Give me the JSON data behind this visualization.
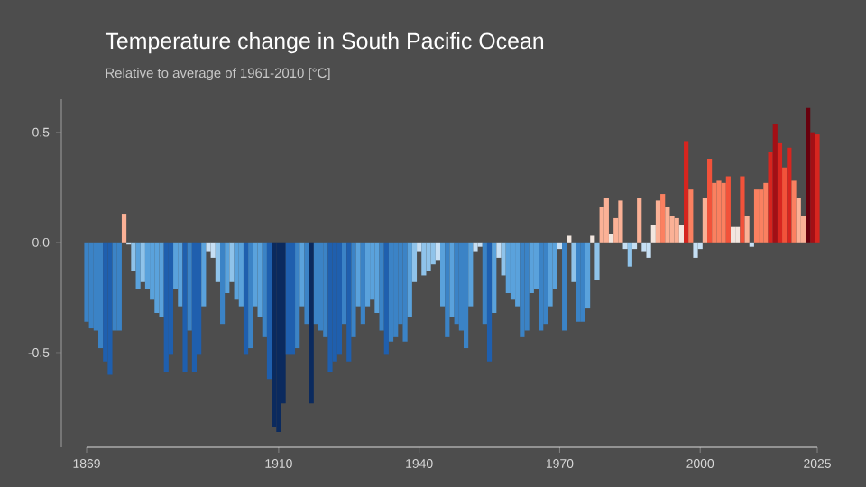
{
  "chart_data": {
    "type": "bar",
    "title": "Temperature change in South Pacific Ocean",
    "subtitle": "Relative to average of 1961-2010  [°C]",
    "x": [
      1869,
      1870,
      1871,
      1872,
      1873,
      1874,
      1875,
      1876,
      1877,
      1878,
      1879,
      1880,
      1881,
      1882,
      1883,
      1884,
      1885,
      1886,
      1887,
      1888,
      1889,
      1890,
      1891,
      1892,
      1893,
      1894,
      1895,
      1896,
      1897,
      1898,
      1899,
      1900,
      1901,
      1902,
      1903,
      1904,
      1905,
      1906,
      1907,
      1908,
      1909,
      1910,
      1911,
      1912,
      1913,
      1914,
      1915,
      1916,
      1917,
      1918,
      1919,
      1920,
      1921,
      1922,
      1923,
      1924,
      1925,
      1926,
      1927,
      1928,
      1929,
      1930,
      1931,
      1932,
      1933,
      1934,
      1935,
      1936,
      1937,
      1938,
      1939,
      1940,
      1941,
      1942,
      1943,
      1944,
      1945,
      1946,
      1947,
      1948,
      1949,
      1950,
      1951,
      1952,
      1953,
      1954,
      1955,
      1956,
      1957,
      1958,
      1959,
      1960,
      1961,
      1962,
      1963,
      1964,
      1965,
      1966,
      1967,
      1968,
      1969,
      1970,
      1971,
      1972,
      1973,
      1974,
      1975,
      1976,
      1977,
      1978,
      1979,
      1980,
      1981,
      1982,
      1983,
      1984,
      1985,
      1986,
      1987,
      1988,
      1989,
      1990,
      1991,
      1992,
      1993,
      1994,
      1995,
      1996,
      1997,
      1998,
      1999,
      2000,
      2001,
      2002,
      2003,
      2004,
      2005,
      2006,
      2007,
      2008,
      2009,
      2010,
      2011,
      2012,
      2013,
      2014,
      2015,
      2016,
      2017,
      2018,
      2019,
      2020,
      2021,
      2022,
      2023,
      2024,
      2025
    ],
    "values": [
      -0.36,
      -0.39,
      -0.4,
      -0.48,
      -0.54,
      -0.6,
      -0.4,
      -0.4,
      0.13,
      -0.01,
      -0.13,
      -0.21,
      -0.18,
      -0.21,
      -0.26,
      -0.32,
      -0.34,
      -0.59,
      -0.51,
      -0.21,
      -0.29,
      -0.59,
      -0.4,
      -0.59,
      -0.51,
      -0.29,
      -0.04,
      -0.07,
      -0.18,
      -0.37,
      -0.23,
      -0.18,
      -0.26,
      -0.29,
      -0.51,
      -0.48,
      -0.29,
      -0.34,
      -0.43,
      -0.62,
      -0.84,
      -0.86,
      -0.73,
      -0.51,
      -0.51,
      -0.48,
      -0.29,
      -0.37,
      -0.73,
      -0.37,
      -0.4,
      -0.43,
      -0.59,
      -0.54,
      -0.51,
      -0.37,
      -0.54,
      -0.43,
      -0.29,
      -0.37,
      -0.29,
      -0.26,
      -0.32,
      -0.4,
      -0.51,
      -0.45,
      -0.43,
      -0.37,
      -0.45,
      -0.34,
      -0.18,
      -0.04,
      -0.15,
      -0.13,
      -0.1,
      -0.08,
      -0.29,
      -0.43,
      -0.34,
      -0.37,
      -0.4,
      -0.48,
      -0.29,
      -0.04,
      -0.02,
      -0.37,
      -0.54,
      -0.32,
      -0.07,
      -0.15,
      -0.23,
      -0.26,
      -0.29,
      -0.43,
      -0.4,
      -0.23,
      -0.21,
      -0.4,
      -0.37,
      -0.29,
      -0.21,
      -0.03,
      -0.4,
      0.03,
      -0.18,
      -0.36,
      -0.36,
      -0.3,
      0.03,
      -0.17,
      0.16,
      0.2,
      0.04,
      0.11,
      0.19,
      -0.03,
      -0.11,
      -0.03,
      0.2,
      -0.04,
      -0.07,
      0.08,
      0.19,
      0.22,
      0.16,
      0.12,
      0.11,
      0.08,
      0.46,
      0.24,
      -0.07,
      -0.03,
      0.2,
      0.38,
      0.27,
      0.28,
      0.27,
      0.3,
      0.07,
      0.07,
      0.3,
      0.12,
      -0.02,
      0.24,
      0.24,
      0.27,
      0.41,
      0.54,
      0.45,
      0.34,
      0.43,
      0.28,
      0.2,
      0.12,
      0.61,
      0.5,
      0.49
    ],
    "colors": [
      "#3b83c6",
      "#3b83c6",
      "#3b83c6",
      "#3b83c6",
      "#1f5fae",
      "#1f5fae",
      "#3b83c6",
      "#3b83c6",
      "#fbb196",
      "#c6dff4",
      "#8fc3ea",
      "#5aa2dc",
      "#8fc3ea",
      "#5aa2dc",
      "#5aa2dc",
      "#5aa2dc",
      "#5aa2dc",
      "#1f5fae",
      "#1f5fae",
      "#5aa2dc",
      "#5aa2dc",
      "#1f5fae",
      "#3b83c6",
      "#1f5fae",
      "#1f5fae",
      "#5aa2dc",
      "#c6dff4",
      "#c6dff4",
      "#8fc3ea",
      "#3b83c6",
      "#5aa2dc",
      "#8fc3ea",
      "#5aa2dc",
      "#5aa2dc",
      "#1f5fae",
      "#3b83c6",
      "#5aa2dc",
      "#5aa2dc",
      "#3b83c6",
      "#1f5fae",
      "#0b2a5e",
      "#0b2a5e",
      "#0b2a5e",
      "#1f5fae",
      "#1f5fae",
      "#3b83c6",
      "#5aa2dc",
      "#3b83c6",
      "#0b2a5e",
      "#3b83c6",
      "#3b83c6",
      "#3b83c6",
      "#1f5fae",
      "#1f5fae",
      "#1f5fae",
      "#3b83c6",
      "#1f5fae",
      "#3b83c6",
      "#5aa2dc",
      "#3b83c6",
      "#5aa2dc",
      "#5aa2dc",
      "#5aa2dc",
      "#3b83c6",
      "#1f5fae",
      "#3b83c6",
      "#3b83c6",
      "#3b83c6",
      "#3b83c6",
      "#5aa2dc",
      "#8fc3ea",
      "#c6dff4",
      "#8fc3ea",
      "#8fc3ea",
      "#8fc3ea",
      "#c6dff4",
      "#5aa2dc",
      "#3b83c6",
      "#5aa2dc",
      "#3b83c6",
      "#3b83c6",
      "#3b83c6",
      "#5aa2dc",
      "#c6dff4",
      "#c6dff4",
      "#3b83c6",
      "#1f5fae",
      "#5aa2dc",
      "#c6dff4",
      "#8fc3ea",
      "#5aa2dc",
      "#5aa2dc",
      "#5aa2dc",
      "#3b83c6",
      "#3b83c6",
      "#5aa2dc",
      "#5aa2dc",
      "#3b83c6",
      "#3b83c6",
      "#5aa2dc",
      "#5aa2dc",
      "#c6dff4",
      "#3b83c6",
      "#f2e6df",
      "#8fc3ea",
      "#3b83c6",
      "#3b83c6",
      "#5aa2dc",
      "#f2e6df",
      "#8fc3ea",
      "#fbb196",
      "#fbb196",
      "#f2e6df",
      "#fbb196",
      "#fbb196",
      "#c6dff4",
      "#8fc3ea",
      "#c6dff4",
      "#fbb196",
      "#c6dff4",
      "#c6dff4",
      "#f2e6df",
      "#fbb196",
      "#fb8060",
      "#fbb196",
      "#fbb196",
      "#fbb196",
      "#f2e6df",
      "#d7251f",
      "#fb8060",
      "#c6dff4",
      "#c6dff4",
      "#fbb196",
      "#f2523a",
      "#fb8060",
      "#fb8060",
      "#fb8060",
      "#f2523a",
      "#f2e6df",
      "#f2e6df",
      "#f2523a",
      "#fbb196",
      "#c6dff4",
      "#fb8060",
      "#fb8060",
      "#fb8060",
      "#d7251f",
      "#a30f15",
      "#d7251f",
      "#f2523a",
      "#d7251f",
      "#fb8060",
      "#fbb196",
      "#fbb196",
      "#67000d",
      "#a30f15",
      "#d7251f"
    ],
    "xlim": [
      1869,
      2025
    ],
    "xticks": [
      1869,
      1910,
      1940,
      1970,
      2000,
      2025
    ],
    "ylim": [
      -0.93,
      0.65
    ],
    "yticks": [
      {
        "value": -0.5,
        "label": "-0.5"
      },
      {
        "value": 0,
        "label": "0.0"
      },
      {
        "value": 0.5,
        "label": "0.5"
      }
    ]
  }
}
